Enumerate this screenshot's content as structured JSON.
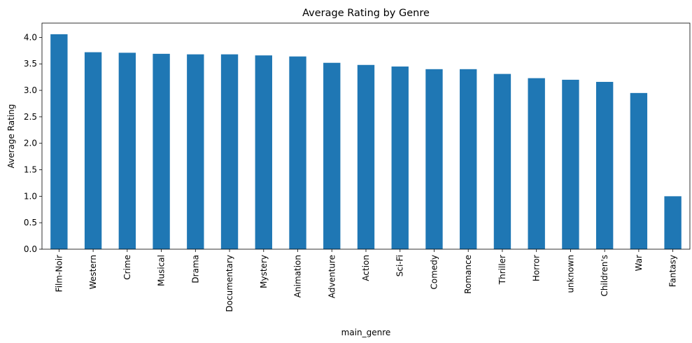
{
  "chart_data": {
    "type": "bar",
    "title": "Average Rating by Genre",
    "xlabel": "main_genre",
    "ylabel": "Average Rating",
    "categories": [
      "Film-Noir",
      "Western",
      "Crime",
      "Musical",
      "Drama",
      "Documentary",
      "Mystery",
      "Animation",
      "Adventure",
      "Action",
      "Sci-Fi",
      "Comedy",
      "Romance",
      "Thriller",
      "Horror",
      "unknown",
      "Children's",
      "War",
      "Fantasy"
    ],
    "values": [
      4.06,
      3.72,
      3.71,
      3.69,
      3.68,
      3.68,
      3.66,
      3.64,
      3.52,
      3.48,
      3.45,
      3.4,
      3.4,
      3.31,
      3.23,
      3.2,
      3.16,
      2.95,
      1.0
    ],
    "yticks": [
      "0.0",
      "0.5",
      "1.0",
      "1.5",
      "2.0",
      "2.5",
      "3.0",
      "3.5",
      "4.0"
    ],
    "ylim": [
      0,
      4.27
    ],
    "grid": false,
    "bar_color": "#1f77b4"
  }
}
